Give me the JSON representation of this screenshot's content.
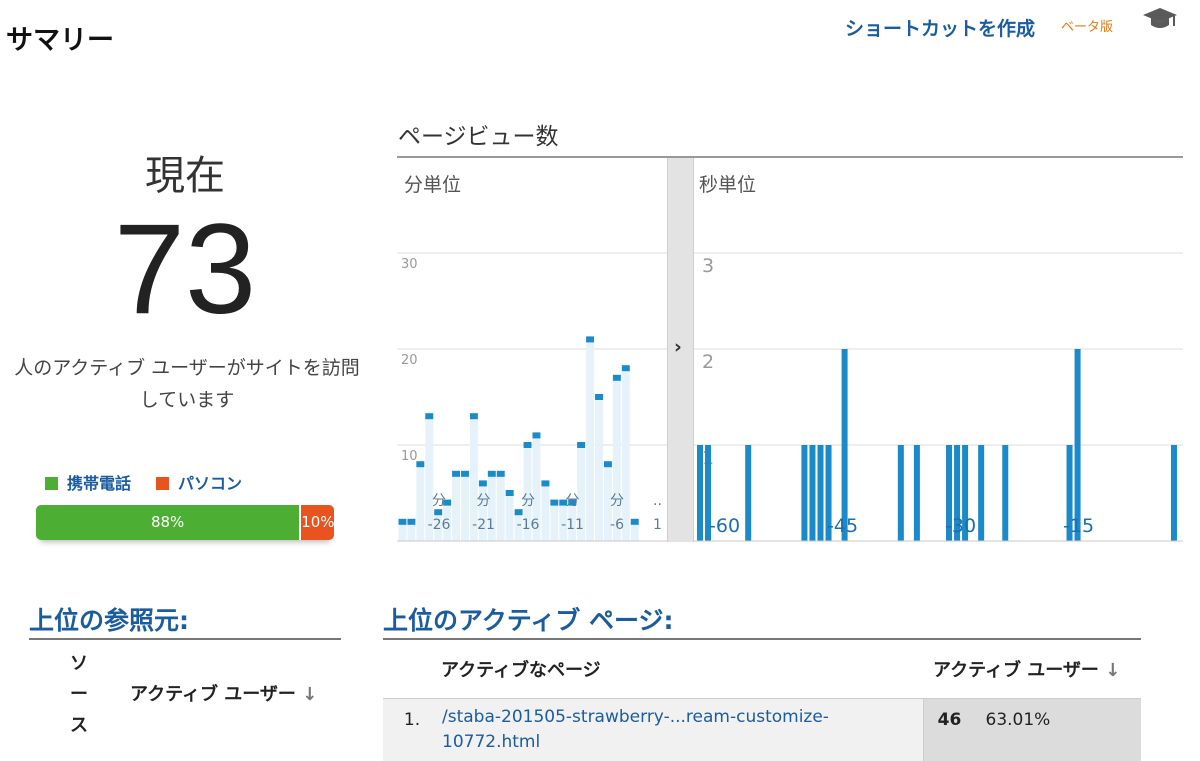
{
  "header": {
    "title": "サマリー",
    "shortcut_label": "ショートカットを作成",
    "beta_label": "ベータ版",
    "icon": "graduation-cap-icon"
  },
  "active_summary": {
    "now_label": "現在",
    "count": "73",
    "description_line1": "人のアクティブ ユーザーがサイトを訪問",
    "description_line2": "しています"
  },
  "device_breakdown": {
    "legend": [
      {
        "label": "携帯電話",
        "color": "#4caf33"
      },
      {
        "label": "パソコン",
        "color": "#e8531f"
      }
    ],
    "segments": [
      {
        "label": "88%",
        "value": 88,
        "color": "#4caf33"
      },
      {
        "label": "10%",
        "value": 10,
        "color": "#e8531f"
      }
    ]
  },
  "pageviews": {
    "title": "ページビュー数",
    "collapse_icon": "chevron-right-icon",
    "minute_panel": {
      "label": "分単位",
      "y_ticks": [
        "30",
        "20",
        "10"
      ],
      "x_labels": [
        {
          "top": "分",
          "bottom": "-26"
        },
        {
          "top": "分",
          "bottom": "-21"
        },
        {
          "top": "分",
          "bottom": "-16"
        },
        {
          "top": "分",
          "bottom": "-11"
        },
        {
          "top": "分",
          "bottom": "-6"
        },
        {
          "top": "..",
          "bottom": "1"
        }
      ]
    },
    "second_panel": {
      "label": "秒単位",
      "y_ticks": [
        "3",
        "2",
        "1"
      ],
      "x_labels": [
        "-60",
        "-45",
        "-30",
        "-15"
      ]
    }
  },
  "chart_data": [
    {
      "type": "bar",
      "title": "分単位",
      "x": [
        -29,
        -28,
        -27,
        -26,
        -25,
        -24,
        -23,
        -22,
        -21,
        -20,
        -19,
        -18,
        -17,
        -16,
        -15,
        -14,
        -13,
        -12,
        -11,
        -10,
        -9,
        -8,
        -7,
        -6,
        -5,
        -4,
        -3,
        -2,
        -1,
        0
      ],
      "values": [
        2,
        2,
        8,
        13,
        3,
        4,
        7,
        7,
        13,
        6,
        7,
        7,
        5,
        3,
        10,
        11,
        6,
        4,
        4,
        4,
        10,
        21,
        15,
        8,
        17,
        18,
        2,
        0,
        0,
        0
      ],
      "ylim": [
        0,
        30
      ],
      "y_ticks": [
        10,
        20,
        30
      ],
      "color": "#1a8ac8"
    },
    {
      "type": "bar",
      "title": "秒単位",
      "x": [
        -60,
        -59,
        -54,
        -47,
        -46,
        -45,
        -44,
        -42,
        -35,
        -33,
        -29,
        -28,
        -27,
        -25,
        -22,
        -14,
        -13,
        -1
      ],
      "values": [
        1,
        1,
        1,
        1,
        1,
        1,
        1,
        2,
        1,
        1,
        1,
        1,
        1,
        1,
        1,
        1,
        2,
        1
      ],
      "ylim": [
        0,
        3
      ],
      "y_ticks": [
        1,
        2,
        3
      ],
      "color": "#1a8ac8"
    }
  ],
  "top_referrers": {
    "title": "上位の参照元:",
    "source_header": [
      "ソ",
      "ー",
      "ス"
    ],
    "users_header": "アクティブ ユーザー",
    "sort_icon": "arrow-down-icon",
    "sort_glyph": "↓"
  },
  "top_pages": {
    "title": "上位のアクティブ ページ:",
    "page_header": "アクティブなページ",
    "users_header": "アクティブ ユーザー",
    "sort_glyph": "↓",
    "rows": [
      {
        "rank": "1.",
        "page_line1": "/staba-201505-strawberry-...ream-customize-",
        "page_line2": "10772.html",
        "users": "46",
        "percent": "63.01%"
      }
    ]
  }
}
